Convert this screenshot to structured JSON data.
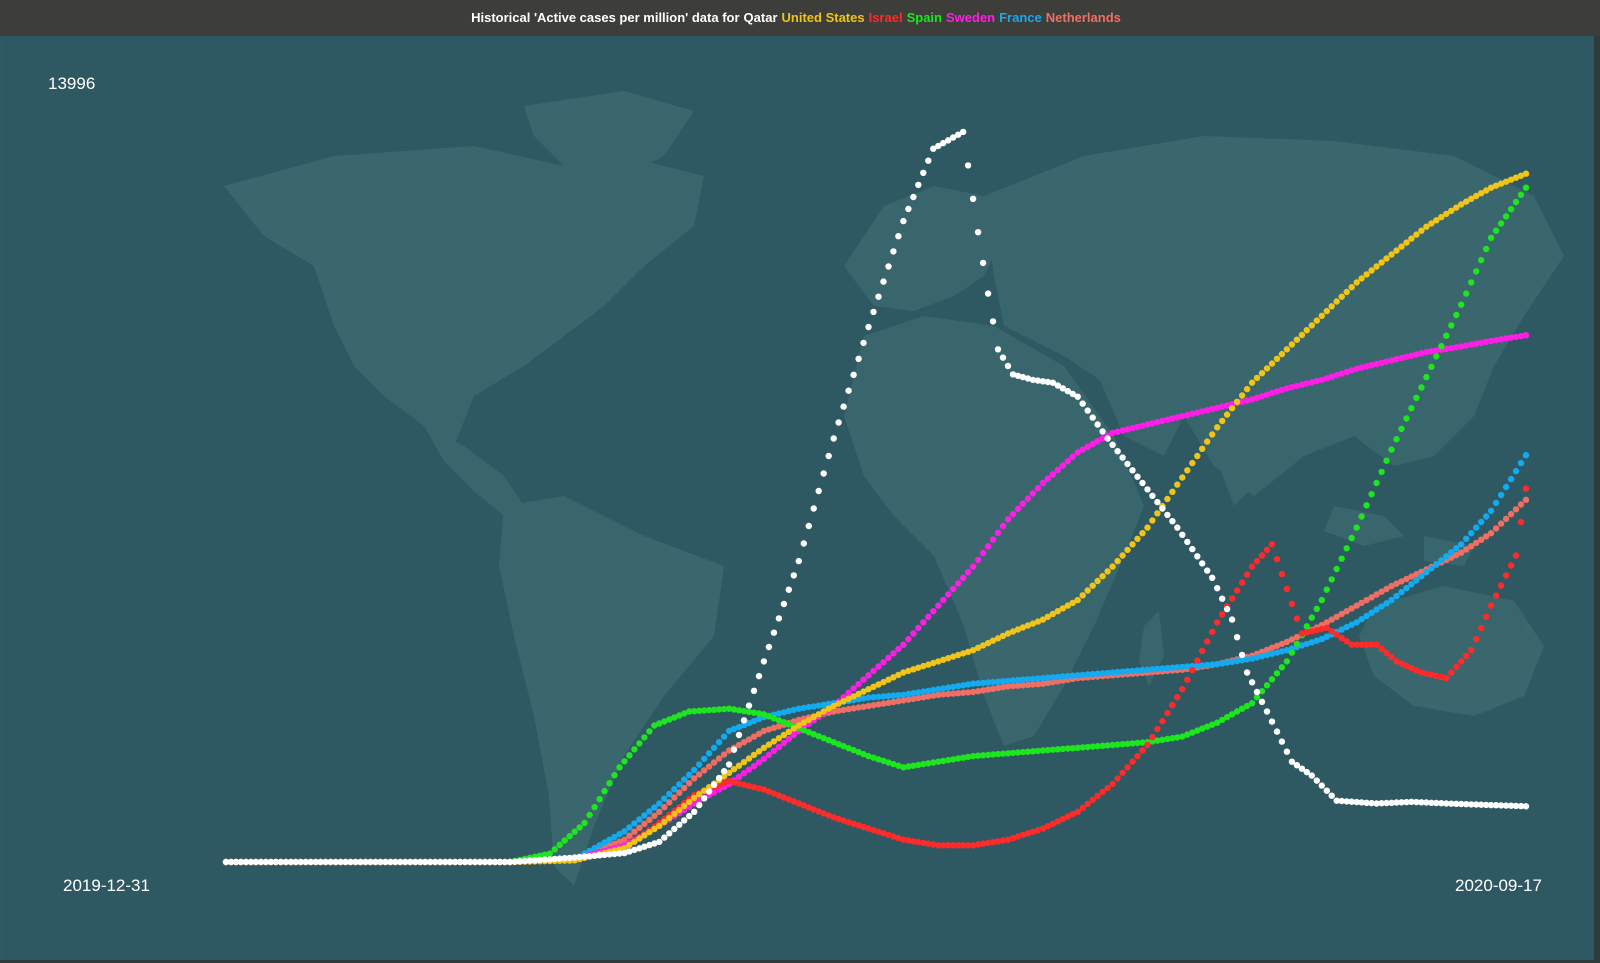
{
  "header": {
    "title_prefix": "Historical 'Active cases per million' data for",
    "colors": {
      "background": "#2e5962",
      "titlebar": "#3d3d39",
      "land": "#3c6970"
    }
  },
  "chart_data": {
    "type": "scatter",
    "title": "Historical 'Active cases per million' data for Qatar United States Israel Spain Sweden France Netherlands",
    "y_max_label": "13996",
    "x_start_label": "2019-12-31",
    "x_end_label": "2020-09-17",
    "x_range": [
      "2019-12-31",
      "2020-09-17"
    ],
    "ylim": [
      0,
      13996
    ],
    "grid": false,
    "series": [
      {
        "name": "Qatar",
        "color": "#ffffff",
        "points": [
          [
            "2019-12-31",
            0
          ],
          [
            "2020-02-26",
            0
          ],
          [
            "2020-03-10",
            80
          ],
          [
            "2020-03-20",
            160
          ],
          [
            "2020-03-27",
            360
          ],
          [
            "2020-04-03",
            900
          ],
          [
            "2020-04-10",
            1750
          ],
          [
            "2020-04-17",
            3600
          ],
          [
            "2020-04-24",
            5400
          ],
          [
            "2020-05-01",
            7600
          ],
          [
            "2020-05-08",
            9600
          ],
          [
            "2020-05-15",
            11500
          ],
          [
            "2020-05-21",
            12800
          ],
          [
            "2020-05-27",
            13100
          ],
          [
            "2020-05-30",
            11300
          ],
          [
            "2020-06-01",
            10200
          ],
          [
            "2020-06-03",
            9200
          ],
          [
            "2020-06-06",
            8750
          ],
          [
            "2020-06-10",
            8650
          ],
          [
            "2020-06-14",
            8600
          ],
          [
            "2020-06-19",
            8350
          ],
          [
            "2020-06-25",
            7600
          ],
          [
            "2020-07-02",
            6800
          ],
          [
            "2020-07-09",
            6000
          ],
          [
            "2020-07-16",
            5100
          ],
          [
            "2020-07-20",
            4350
          ],
          [
            "2020-07-23",
            3400
          ],
          [
            "2020-07-27",
            2700
          ],
          [
            "2020-08-01",
            1800
          ],
          [
            "2020-08-05",
            1550
          ],
          [
            "2020-08-10",
            1100
          ],
          [
            "2020-08-18",
            1050
          ],
          [
            "2020-08-25",
            1080
          ],
          [
            "2020-09-01",
            1050
          ],
          [
            "2020-09-17",
            1000
          ]
        ]
      },
      {
        "name": "United States",
        "color": "#f0c419",
        "points": [
          [
            "2019-12-31",
            0
          ],
          [
            "2020-02-26",
            0
          ],
          [
            "2020-03-10",
            30
          ],
          [
            "2020-03-20",
            250
          ],
          [
            "2020-03-27",
            650
          ],
          [
            "2020-04-03",
            1150
          ],
          [
            "2020-04-10",
            1600
          ],
          [
            "2020-04-17",
            2050
          ],
          [
            "2020-04-24",
            2450
          ],
          [
            "2020-05-01",
            2800
          ],
          [
            "2020-05-08",
            3100
          ],
          [
            "2020-05-15",
            3400
          ],
          [
            "2020-05-22",
            3600
          ],
          [
            "2020-05-29",
            3800
          ],
          [
            "2020-06-05",
            4100
          ],
          [
            "2020-06-12",
            4350
          ],
          [
            "2020-06-19",
            4700
          ],
          [
            "2020-06-26",
            5300
          ],
          [
            "2020-07-03",
            6000
          ],
          [
            "2020-07-10",
            6900
          ],
          [
            "2020-07-17",
            7800
          ],
          [
            "2020-07-24",
            8600
          ],
          [
            "2020-07-31",
            9200
          ],
          [
            "2020-08-07",
            9800
          ],
          [
            "2020-08-14",
            10400
          ],
          [
            "2020-08-21",
            10900
          ],
          [
            "2020-08-28",
            11400
          ],
          [
            "2020-09-04",
            11800
          ],
          [
            "2020-09-10",
            12100
          ],
          [
            "2020-09-17",
            12350
          ]
        ]
      },
      {
        "name": "Israel",
        "color": "#ff2a2a",
        "points": [
          [
            "2019-12-31",
            0
          ],
          [
            "2020-02-26",
            0
          ],
          [
            "2020-03-10",
            30
          ],
          [
            "2020-03-20",
            250
          ],
          [
            "2020-03-27",
            700
          ],
          [
            "2020-04-03",
            1200
          ],
          [
            "2020-04-10",
            1450
          ],
          [
            "2020-04-17",
            1300
          ],
          [
            "2020-04-24",
            1050
          ],
          [
            "2020-05-01",
            800
          ],
          [
            "2020-05-08",
            600
          ],
          [
            "2020-05-15",
            400
          ],
          [
            "2020-05-22",
            300
          ],
          [
            "2020-05-29",
            300
          ],
          [
            "2020-06-05",
            400
          ],
          [
            "2020-06-12",
            600
          ],
          [
            "2020-06-19",
            900
          ],
          [
            "2020-06-26",
            1400
          ],
          [
            "2020-07-03",
            2100
          ],
          [
            "2020-07-10",
            3100
          ],
          [
            "2020-07-17",
            4300
          ],
          [
            "2020-07-24",
            5300
          ],
          [
            "2020-07-28",
            5700
          ],
          [
            "2020-08-03",
            4100
          ],
          [
            "2020-08-08",
            4200
          ],
          [
            "2020-08-13",
            3900
          ],
          [
            "2020-08-18",
            3900
          ],
          [
            "2020-08-22",
            3600
          ],
          [
            "2020-08-27",
            3400
          ],
          [
            "2020-09-01",
            3300
          ],
          [
            "2020-09-06",
            3800
          ],
          [
            "2020-09-10",
            4600
          ],
          [
            "2020-09-15",
            5500
          ],
          [
            "2020-09-17",
            6700
          ]
        ]
      },
      {
        "name": "Spain",
        "color": "#1ee61e",
        "points": [
          [
            "2019-12-31",
            0
          ],
          [
            "2020-02-26",
            0
          ],
          [
            "2020-03-05",
            150
          ],
          [
            "2020-03-12",
            700
          ],
          [
            "2020-03-19",
            1700
          ],
          [
            "2020-03-26",
            2450
          ],
          [
            "2020-04-02",
            2700
          ],
          [
            "2020-04-10",
            2750
          ],
          [
            "2020-04-17",
            2650
          ],
          [
            "2020-04-24",
            2400
          ],
          [
            "2020-05-01",
            2150
          ],
          [
            "2020-05-08",
            1900
          ],
          [
            "2020-05-15",
            1700
          ],
          [
            "2020-05-22",
            1800
          ],
          [
            "2020-05-29",
            1900
          ],
          [
            "2020-06-05",
            1950
          ],
          [
            "2020-06-12",
            2000
          ],
          [
            "2020-06-19",
            2050
          ],
          [
            "2020-06-26",
            2100
          ],
          [
            "2020-07-03",
            2150
          ],
          [
            "2020-07-10",
            2250
          ],
          [
            "2020-07-17",
            2500
          ],
          [
            "2020-07-24",
            2850
          ],
          [
            "2020-07-31",
            3600
          ],
          [
            "2020-08-07",
            4700
          ],
          [
            "2020-08-14",
            6000
          ],
          [
            "2020-08-21",
            7400
          ],
          [
            "2020-08-28",
            8700
          ],
          [
            "2020-09-04",
            10000
          ],
          [
            "2020-09-10",
            11200
          ],
          [
            "2020-09-17",
            12100
          ]
        ]
      },
      {
        "name": "Sweden",
        "color": "#ff1ee6",
        "points": [
          [
            "2019-12-31",
            0
          ],
          [
            "2020-02-26",
            0
          ],
          [
            "2020-03-10",
            50
          ],
          [
            "2020-03-20",
            300
          ],
          [
            "2020-03-27",
            650
          ],
          [
            "2020-04-03",
            1050
          ],
          [
            "2020-04-10",
            1400
          ],
          [
            "2020-04-17",
            1850
          ],
          [
            "2020-04-24",
            2350
          ],
          [
            "2020-05-01",
            2800
          ],
          [
            "2020-05-08",
            3350
          ],
          [
            "2020-05-15",
            3900
          ],
          [
            "2020-05-22",
            4600
          ],
          [
            "2020-05-29",
            5300
          ],
          [
            "2020-06-05",
            6150
          ],
          [
            "2020-06-12",
            6800
          ],
          [
            "2020-06-19",
            7350
          ],
          [
            "2020-06-26",
            7700
          ],
          [
            "2020-07-03",
            7850
          ],
          [
            "2020-07-10",
            8000
          ],
          [
            "2020-07-17",
            8150
          ],
          [
            "2020-07-24",
            8300
          ],
          [
            "2020-07-31",
            8500
          ],
          [
            "2020-08-07",
            8650
          ],
          [
            "2020-08-14",
            8850
          ],
          [
            "2020-08-21",
            9000
          ],
          [
            "2020-08-28",
            9150
          ],
          [
            "2020-09-04",
            9250
          ],
          [
            "2020-09-10",
            9350
          ],
          [
            "2020-09-17",
            9450
          ]
        ]
      },
      {
        "name": "France",
        "color": "#14aaf0",
        "points": [
          [
            "2019-12-31",
            0
          ],
          [
            "2020-02-26",
            0
          ],
          [
            "2020-03-10",
            50
          ],
          [
            "2020-03-20",
            550
          ],
          [
            "2020-03-27",
            1050
          ],
          [
            "2020-04-03",
            1650
          ],
          [
            "2020-04-10",
            2350
          ],
          [
            "2020-04-17",
            2600
          ],
          [
            "2020-04-24",
            2750
          ],
          [
            "2020-05-01",
            2850
          ],
          [
            "2020-05-08",
            2950
          ],
          [
            "2020-05-15",
            3000
          ],
          [
            "2020-05-22",
            3100
          ],
          [
            "2020-05-29",
            3200
          ],
          [
            "2020-06-05",
            3250
          ],
          [
            "2020-06-12",
            3300
          ],
          [
            "2020-06-19",
            3350
          ],
          [
            "2020-06-26",
            3400
          ],
          [
            "2020-07-03",
            3450
          ],
          [
            "2020-07-10",
            3500
          ],
          [
            "2020-07-17",
            3550
          ],
          [
            "2020-07-24",
            3650
          ],
          [
            "2020-07-31",
            3800
          ],
          [
            "2020-08-07",
            4000
          ],
          [
            "2020-08-14",
            4300
          ],
          [
            "2020-08-21",
            4700
          ],
          [
            "2020-08-28",
            5200
          ],
          [
            "2020-09-04",
            5700
          ],
          [
            "2020-09-10",
            6300
          ],
          [
            "2020-09-17",
            7300
          ]
        ]
      },
      {
        "name": "Netherlands",
        "color": "#f06e64",
        "points": [
          [
            "2019-12-31",
            0
          ],
          [
            "2020-02-26",
            0
          ],
          [
            "2020-03-10",
            40
          ],
          [
            "2020-03-20",
            400
          ],
          [
            "2020-03-27",
            900
          ],
          [
            "2020-04-03",
            1500
          ],
          [
            "2020-04-10",
            2000
          ],
          [
            "2020-04-17",
            2350
          ],
          [
            "2020-04-24",
            2550
          ],
          [
            "2020-05-01",
            2700
          ],
          [
            "2020-05-08",
            2800
          ],
          [
            "2020-05-15",
            2900
          ],
          [
            "2020-05-22",
            3000
          ],
          [
            "2020-05-29",
            3050
          ],
          [
            "2020-06-05",
            3150
          ],
          [
            "2020-06-12",
            3200
          ],
          [
            "2020-06-19",
            3300
          ],
          [
            "2020-06-26",
            3350
          ],
          [
            "2020-07-03",
            3400
          ],
          [
            "2020-07-10",
            3450
          ],
          [
            "2020-07-17",
            3550
          ],
          [
            "2020-07-24",
            3700
          ],
          [
            "2020-07-31",
            3950
          ],
          [
            "2020-08-07",
            4250
          ],
          [
            "2020-08-14",
            4600
          ],
          [
            "2020-08-21",
            4950
          ],
          [
            "2020-08-28",
            5250
          ],
          [
            "2020-09-04",
            5550
          ],
          [
            "2020-09-10",
            5900
          ],
          [
            "2020-09-17",
            6500
          ]
        ]
      }
    ]
  }
}
